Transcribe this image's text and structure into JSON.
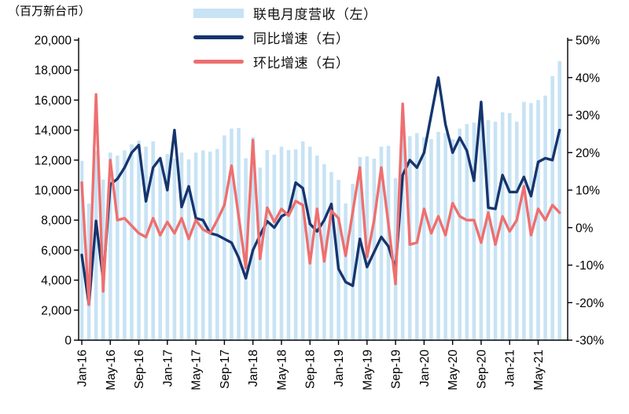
{
  "page": {
    "background": "#ffffff"
  },
  "axis_left_title": "（百万新台币）",
  "legend": {
    "items": [
      {
        "label": "联电月度营收（左）",
        "type": "bar",
        "color": "#C7E3F4"
      },
      {
        "label": "同比增速（右）",
        "type": "line",
        "color": "#16356F"
      },
      {
        "label": "环比增速（右）",
        "type": "line",
        "color": "#EE6F6F"
      }
    ]
  },
  "chart_data": {
    "type": "bar+line",
    "title": "",
    "y_left_label": "（百万新台币）",
    "ylim_left": [
      0,
      20000
    ],
    "y_left_tick_step": 2000,
    "y_left_tick_labels": [
      "0",
      "2,000",
      "4,000",
      "6,000",
      "8,000",
      "10,000",
      "12,000",
      "14,000",
      "16,000",
      "18,000",
      "20,000"
    ],
    "ylim_right": [
      -30,
      50
    ],
    "y_right_tick_step": 10,
    "y_right_tick_labels": [
      "-30%",
      "-20%",
      "-10%",
      "0%",
      "10%",
      "20%",
      "30%",
      "40%",
      "50%"
    ],
    "grid": false,
    "legend_position": "top-center",
    "x_tick_every": 4,
    "x_tick_labels": [
      "Jan-16",
      "May-16",
      "Sep-16",
      "Jan-17",
      "May-17",
      "Sep-17",
      "Jan-18",
      "May-18",
      "Sep-18",
      "Jan-19",
      "May-19",
      "Sep-19",
      "Jan-20",
      "May-20",
      "Sep-20",
      "Jan-21",
      "May-21"
    ],
    "categories": [
      "Jan-16",
      "Feb-16",
      "Mar-16",
      "Apr-16",
      "May-16",
      "Jun-16",
      "Jul-16",
      "Aug-16",
      "Sep-16",
      "Oct-16",
      "Nov-16",
      "Dec-16",
      "Jan-17",
      "Feb-17",
      "Mar-17",
      "Apr-17",
      "May-17",
      "Jun-17",
      "Jul-17",
      "Aug-17",
      "Sep-17",
      "Oct-17",
      "Nov-17",
      "Dec-17",
      "Jan-18",
      "Feb-18",
      "Mar-18",
      "Apr-18",
      "May-18",
      "Jun-18",
      "Jul-18",
      "Aug-18",
      "Sep-18",
      "Oct-18",
      "Nov-18",
      "Dec-18",
      "Jan-19",
      "Feb-19",
      "Mar-19",
      "Apr-19",
      "May-19",
      "Jun-19",
      "Jul-19",
      "Aug-19",
      "Sep-19",
      "Oct-19",
      "Nov-19",
      "Dec-19",
      "Jan-20",
      "Feb-20",
      "Mar-20",
      "Apr-20",
      "May-20",
      "Jun-20",
      "Jul-20",
      "Aug-20",
      "Sep-20",
      "Oct-20",
      "Nov-20",
      "Dec-20",
      "Jan-21",
      "Feb-21",
      "Mar-21",
      "Apr-21",
      "May-21",
      "Jun-21",
      "Jul-21",
      "Aug-21"
    ],
    "series": [
      {
        "name": "联电月度营收（左）",
        "type": "bar",
        "axis": "left",
        "color": "#C7E3F4",
        "values": [
          11950,
          9100,
          12600,
          10700,
          12500,
          12300,
          12650,
          13050,
          13300,
          12900,
          13250,
          12150,
          12400,
          12100,
          12500,
          12050,
          12500,
          12650,
          12570,
          12740,
          13650,
          14100,
          14140,
          12130,
          13530,
          11500,
          12670,
          12360,
          12890,
          12670,
          12720,
          13260,
          12890,
          12300,
          11730,
          11200,
          10680,
          9110,
          10420,
          12200,
          12250,
          12100,
          12900,
          12950,
          10800,
          13900,
          13600,
          13800,
          13520,
          13400,
          13880,
          13800,
          13400,
          14100,
          14400,
          14500,
          14920,
          14660,
          14560,
          15180,
          15130,
          14560,
          15880,
          15800,
          16000,
          16300,
          17600,
          18600
        ]
      },
      {
        "name": "同比增速（右）",
        "type": "line",
        "axis": "right",
        "color": "#16356F",
        "values": [
          -7.3,
          -20.5,
          1.8,
          -14,
          11.5,
          13,
          16,
          20,
          22,
          7,
          16,
          18.5,
          10,
          26,
          5.5,
          11,
          2.5,
          2,
          -1.5,
          -2,
          -3,
          -4,
          -8,
          -13.5,
          -6,
          -2,
          1.7,
          0,
          3,
          4,
          12,
          10.5,
          1,
          -1,
          2,
          6.3,
          -11,
          -14.5,
          -15.5,
          -3,
          -10.5,
          -6.5,
          -2.5,
          -5,
          -11,
          14,
          18,
          16,
          20,
          30,
          40,
          27.5,
          20,
          24,
          20.5,
          12.5,
          33.5,
          5.3,
          5,
          14,
          9.5,
          9.5,
          13.5,
          8.4,
          17.5,
          18.5,
          18,
          26
        ]
      },
      {
        "name": "环比增速（右）",
        "type": "line",
        "axis": "right",
        "color": "#EE6F6F",
        "values": [
          12,
          -20.5,
          35.5,
          -17,
          18,
          2,
          2.5,
          0.5,
          -1.5,
          -2.5,
          2.5,
          -2,
          1.5,
          -1.5,
          2.5,
          -3,
          2,
          -0.5,
          -1.5,
          2,
          6,
          16.5,
          3,
          -10.8,
          23.3,
          -8.3,
          5.3,
          1.5,
          5,
          3.2,
          7.1,
          6,
          -9.5,
          5,
          -9,
          4.5,
          2.5,
          -7.5,
          4.2,
          16,
          -7.8,
          2,
          16,
          1,
          -15,
          33,
          -4.5,
          -4,
          5,
          -1.5,
          3,
          -2,
          6.5,
          3,
          2,
          2,
          -4,
          4,
          -4.5,
          3,
          -1,
          2,
          11,
          -2,
          5,
          2,
          6,
          4
        ]
      }
    ]
  }
}
